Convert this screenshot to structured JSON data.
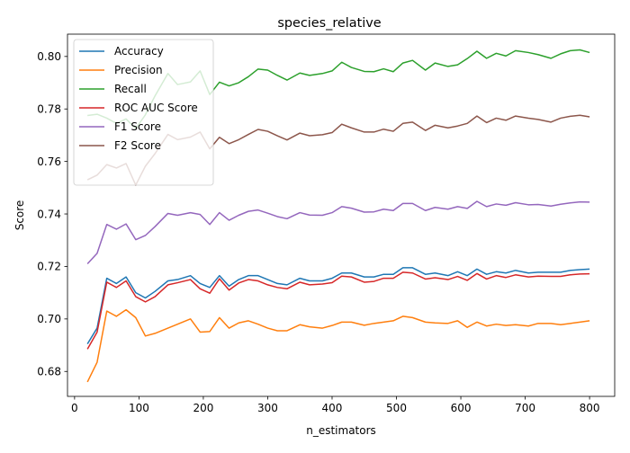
{
  "chart_data": {
    "type": "line",
    "title": "species_relative",
    "xlabel": "n_estimators",
    "ylabel": "Score",
    "xlim": [
      -11,
      839
    ],
    "ylim": [
      0.6705,
      0.8085
    ],
    "xticks": [
      0,
      100,
      200,
      300,
      400,
      500,
      600,
      700,
      800
    ],
    "yticks": [
      0.68,
      0.7,
      0.72,
      0.74,
      0.76,
      0.78,
      0.8
    ],
    "ytick_labels": [
      "0.68",
      "0.70",
      "0.72",
      "0.74",
      "0.76",
      "0.78",
      "0.80"
    ],
    "grid": false,
    "legend_position": "top-left",
    "x": [
      20,
      35,
      50,
      65,
      80,
      95,
      110,
      125,
      145,
      160,
      180,
      195,
      210,
      225,
      240,
      255,
      270,
      285,
      300,
      315,
      330,
      350,
      365,
      385,
      400,
      415,
      430,
      450,
      465,
      480,
      495,
      510,
      525,
      545,
      560,
      580,
      595,
      610,
      625,
      640,
      655,
      670,
      685,
      705,
      720,
      740,
      755,
      770,
      785,
      800
    ],
    "series": [
      {
        "name": "Accuracy",
        "color": "#1f77b4",
        "values": [
          0.6905,
          0.6965,
          0.7155,
          0.7135,
          0.716,
          0.71,
          0.708,
          0.7105,
          0.7145,
          0.715,
          0.7165,
          0.7135,
          0.712,
          0.7165,
          0.7125,
          0.715,
          0.7165,
          0.7165,
          0.715,
          0.7135,
          0.713,
          0.7155,
          0.7145,
          0.7145,
          0.7155,
          0.7175,
          0.7175,
          0.716,
          0.716,
          0.717,
          0.717,
          0.7195,
          0.7195,
          0.717,
          0.7175,
          0.7165,
          0.718,
          0.7165,
          0.719,
          0.717,
          0.718,
          0.7175,
          0.7185,
          0.7175,
          0.7178,
          0.7178,
          0.7178,
          0.7185,
          0.7188,
          0.719
        ]
      },
      {
        "name": "Precision",
        "color": "#ff7f0e",
        "values": [
          0.676,
          0.6835,
          0.703,
          0.701,
          0.7035,
          0.7005,
          0.6935,
          0.6945,
          0.6965,
          0.698,
          0.7,
          0.695,
          0.6952,
          0.7005,
          0.6965,
          0.6985,
          0.6993,
          0.698,
          0.6965,
          0.6955,
          0.6955,
          0.6978,
          0.697,
          0.6965,
          0.6975,
          0.6988,
          0.6988,
          0.6976,
          0.6983,
          0.6988,
          0.6993,
          0.701,
          0.7005,
          0.6988,
          0.6985,
          0.6983,
          0.6993,
          0.6968,
          0.6988,
          0.6973,
          0.698,
          0.6975,
          0.6978,
          0.6973,
          0.6983,
          0.6983,
          0.6978,
          0.6983,
          0.6988,
          0.6993
        ]
      },
      {
        "name": "Recall",
        "color": "#2ca02c",
        "values": [
          0.7775,
          0.778,
          0.7765,
          0.7745,
          0.7762,
          0.7725,
          0.7778,
          0.785,
          0.7935,
          0.7893,
          0.7903,
          0.7945,
          0.7855,
          0.7902,
          0.7888,
          0.79,
          0.7923,
          0.7952,
          0.7948,
          0.7928,
          0.791,
          0.7937,
          0.7928,
          0.7935,
          0.7945,
          0.7978,
          0.7958,
          0.7943,
          0.7942,
          0.7953,
          0.7942,
          0.7975,
          0.7985,
          0.7948,
          0.7975,
          0.7962,
          0.7968,
          0.7992,
          0.802,
          0.7993,
          0.8012,
          0.8002,
          0.8022,
          0.8015,
          0.8007,
          0.7993,
          0.801,
          0.8022,
          0.8025,
          0.8015
        ]
      },
      {
        "name": "ROC AUC Score",
        "color": "#d62728",
        "values": [
          0.6885,
          0.695,
          0.714,
          0.712,
          0.7145,
          0.7085,
          0.7065,
          0.7085,
          0.713,
          0.7138,
          0.715,
          0.7115,
          0.7098,
          0.7153,
          0.711,
          0.7137,
          0.715,
          0.7145,
          0.713,
          0.712,
          0.7115,
          0.714,
          0.713,
          0.7133,
          0.7138,
          0.7163,
          0.716,
          0.714,
          0.7143,
          0.7155,
          0.7155,
          0.7178,
          0.7175,
          0.7152,
          0.7157,
          0.715,
          0.7162,
          0.7147,
          0.7173,
          0.7152,
          0.7165,
          0.7158,
          0.7168,
          0.716,
          0.7163,
          0.7162,
          0.7162,
          0.7168,
          0.7171,
          0.7172
        ]
      },
      {
        "name": "F1 Score",
        "color": "#9467bd",
        "values": [
          0.721,
          0.725,
          0.736,
          0.7342,
          0.7362,
          0.7302,
          0.7318,
          0.7352,
          0.7402,
          0.7395,
          0.7405,
          0.7398,
          0.736,
          0.7405,
          0.7376,
          0.7395,
          0.741,
          0.7415,
          0.7403,
          0.739,
          0.7382,
          0.7405,
          0.7396,
          0.7395,
          0.7405,
          0.7428,
          0.7422,
          0.7407,
          0.7408,
          0.7418,
          0.7413,
          0.744,
          0.744,
          0.7413,
          0.7425,
          0.7418,
          0.7428,
          0.7421,
          0.7448,
          0.7428,
          0.7438,
          0.7433,
          0.7443,
          0.7435,
          0.7436,
          0.743,
          0.7437,
          0.7442,
          0.7446,
          0.7445
        ]
      },
      {
        "name": "F2 Score",
        "color": "#8c564b",
        "values": [
          0.753,
          0.7548,
          0.7588,
          0.7575,
          0.7592,
          0.751,
          0.7582,
          0.763,
          0.7703,
          0.7683,
          0.7693,
          0.7712,
          0.7648,
          0.7692,
          0.7668,
          0.7683,
          0.7703,
          0.7722,
          0.7715,
          0.7698,
          0.7682,
          0.7708,
          0.7698,
          0.7702,
          0.771,
          0.7742,
          0.7728,
          0.7712,
          0.7712,
          0.7723,
          0.7715,
          0.7745,
          0.775,
          0.7718,
          0.7738,
          0.7728,
          0.7735,
          0.7745,
          0.7773,
          0.7748,
          0.7765,
          0.7757,
          0.7773,
          0.7765,
          0.776,
          0.775,
          0.7765,
          0.7772,
          0.7776,
          0.777
        ]
      }
    ]
  }
}
